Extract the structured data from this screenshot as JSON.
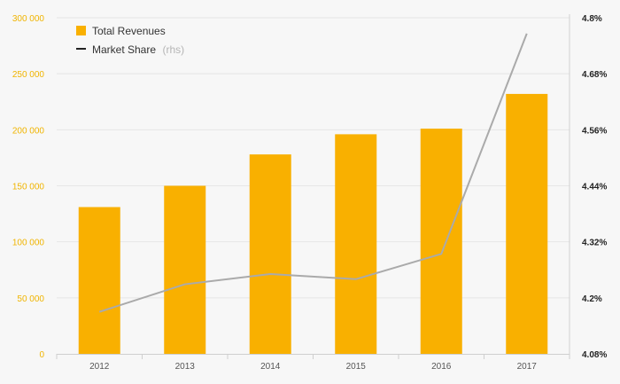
{
  "chart_data": {
    "type": "bar",
    "categories": [
      "2012",
      "2013",
      "2014",
      "2015",
      "2016",
      "2017"
    ],
    "series": [
      {
        "name": "Total Revenues",
        "type": "bar",
        "axis": "left",
        "color": "#f9b000",
        "values": [
          131000,
          150000,
          178000,
          196000,
          201000,
          232000
        ]
      },
      {
        "name": "Market Share",
        "name_suffix": "(rhs)",
        "type": "line",
        "axis": "right",
        "color": "#aaaaaa",
        "values": [
          4.17,
          4.229,
          4.251,
          4.24,
          4.294,
          4.766
        ]
      }
    ],
    "left_axis": {
      "ylim": [
        0,
        300000
      ],
      "ticks": [
        0,
        50000,
        100000,
        150000,
        200000,
        250000,
        300000
      ],
      "tick_labels": [
        "0",
        "50 000",
        "100 000",
        "150 000",
        "200 000",
        "250 000",
        "300 000"
      ],
      "label_color": "#f0b400"
    },
    "right_axis": {
      "ylim": [
        4.08,
        4.8
      ],
      "ticks": [
        4.08,
        4.2,
        4.32,
        4.44,
        4.56,
        4.68,
        4.8
      ],
      "tick_labels": [
        "4.08%",
        "4.2%",
        "4.32%",
        "4.44%",
        "4.56%",
        "4.68%",
        "4.8%"
      ]
    },
    "grid": true,
    "legend_position": "top-left"
  }
}
